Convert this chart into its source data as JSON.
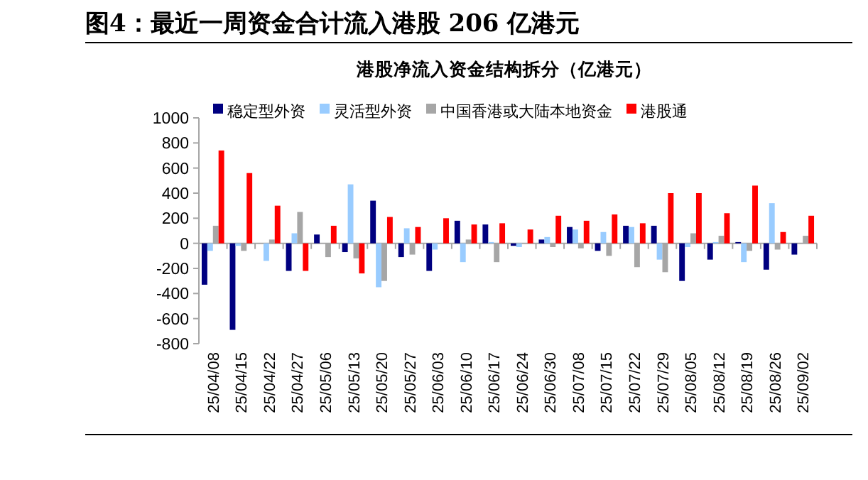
{
  "chart_data": {
    "type": "bar",
    "title": "图4：最近一周资金合计流入港股 206 亿港元",
    "subtitle": "港股净流入资金结构拆分（亿港元）",
    "categories": [
      "25/04/08",
      "25/04/15",
      "25/04/22",
      "25/04/27",
      "25/05/06",
      "25/05/13",
      "25/05/20",
      "25/05/27",
      "25/06/03",
      "25/06/10",
      "25/06/17",
      "25/06/24",
      "25/06/30",
      "25/07/08",
      "25/07/15",
      "25/07/22",
      "25/07/29",
      "25/08/05",
      "25/08/12",
      "25/08/19",
      "25/08/26",
      "25/09/02"
    ],
    "series": [
      {
        "name": "稳定型外资",
        "color": "#000080",
        "values": [
          -330,
          -690,
          0,
          -220,
          70,
          -70,
          340,
          -110,
          -220,
          180,
          150,
          -20,
          30,
          130,
          -60,
          140,
          140,
          -300,
          -130,
          10,
          -210,
          -90
        ]
      },
      {
        "name": "灵活型外资",
        "color": "#99ccff",
        "values": [
          -60,
          -20,
          -140,
          80,
          0,
          470,
          -350,
          120,
          -50,
          -150,
          10,
          -30,
          50,
          110,
          90,
          130,
          -130,
          -30,
          10,
          -150,
          320,
          0
        ]
      },
      {
        "name": "中国香港或大陆本地资金",
        "color": "#a6a6a6",
        "values": [
          140,
          -60,
          30,
          250,
          -110,
          -120,
          -300,
          -90,
          null,
          30,
          -150,
          0,
          -30,
          -40,
          -100,
          -190,
          -230,
          80,
          60,
          -60,
          -50,
          60
        ]
      },
      {
        "name": "港股通",
        "color": "#ff0000",
        "values": [
          740,
          560,
          300,
          -220,
          140,
          -240,
          210,
          130,
          200,
          150,
          160,
          110,
          220,
          180,
          230,
          160,
          400,
          400,
          240,
          460,
          90,
          220
        ]
      }
    ],
    "ylim": [
      -800,
      1000
    ],
    "yticks": [
      -800,
      -600,
      -400,
      -200,
      0,
      200,
      400,
      600,
      800,
      1000
    ],
    "legend": "top"
  }
}
